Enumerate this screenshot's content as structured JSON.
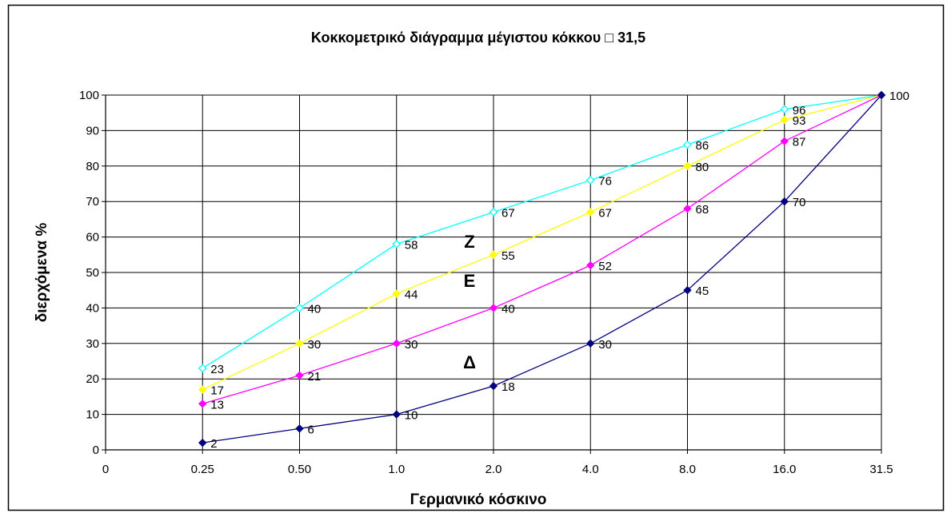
{
  "chart_data": {
    "type": "line",
    "title": "Κοκκομετρικό διάγραμμα μέγιστου κόκκου □ 31,5",
    "xlabel": "Γερμανικό κόσκινο",
    "ylabel": "διερχόμενα  %",
    "categories": [
      "0",
      "0.25",
      "0.50",
      "1.0",
      "2.0",
      "4.0",
      "8.0",
      "16.0",
      "31.5"
    ],
    "ylim": [
      0,
      100
    ],
    "yticks": [
      "0",
      "10",
      "20",
      "30",
      "40",
      "50",
      "60",
      "70",
      "80",
      "90",
      "100"
    ],
    "grid": true,
    "series": [
      {
        "color": "#00ffff",
        "marker": "diamond-open",
        "values": [
          null,
          23,
          40,
          58,
          67,
          76,
          86,
          96,
          100
        ],
        "labels": [
          "",
          "23",
          "40",
          "58",
          "67",
          "76",
          "86",
          "96",
          ""
        ]
      },
      {
        "color": "#ffff00",
        "marker": "diamond",
        "values": [
          null,
          17,
          30,
          44,
          55,
          67,
          80,
          93,
          100
        ],
        "labels": [
          "",
          "17",
          "30",
          "44",
          "55",
          "67",
          "80",
          "93",
          ""
        ]
      },
      {
        "color": "#ff00ff",
        "marker": "diamond",
        "values": [
          null,
          13,
          21,
          30,
          40,
          52,
          68,
          87,
          100
        ],
        "labels": [
          "",
          "13",
          "21",
          "30",
          "40",
          "52",
          "68",
          "87",
          ""
        ]
      },
      {
        "color": "#000080",
        "marker": "diamond",
        "values": [
          null,
          2,
          6,
          10,
          18,
          30,
          45,
          70,
          100
        ],
        "labels": [
          "",
          "2",
          "6",
          "10",
          "18",
          "30",
          "45",
          "70",
          "100"
        ]
      }
    ],
    "annotations": [
      {
        "text": "Ζ",
        "x": "2.0",
        "y": 57
      },
      {
        "text": "Ε",
        "x": "2.0",
        "y": 46
      },
      {
        "text": "Δ",
        "x": "2.0",
        "y": 23
      }
    ]
  }
}
